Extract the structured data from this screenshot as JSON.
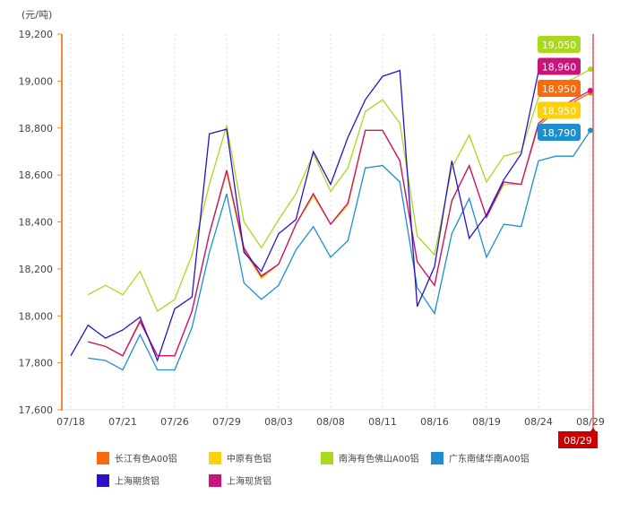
{
  "chart_data": {
    "type": "line",
    "unit_label": "(元/吨)",
    "ylim": [
      17600,
      19200
    ],
    "y_ticks": [
      "17,600",
      "17,800",
      "18,000",
      "18,200",
      "18,400",
      "18,600",
      "18,800",
      "19,000",
      "19,200"
    ],
    "y_tick_values": [
      17600,
      17800,
      18000,
      18200,
      18400,
      18600,
      18800,
      19000,
      19200
    ],
    "x_tick_labels": [
      "07/18",
      "07/21",
      "07/26",
      "07/29",
      "08/03",
      "08/08",
      "08/11",
      "08/16",
      "08/19",
      "08/24",
      "08/29"
    ],
    "x_count": 31,
    "grid": "vertical dotted",
    "legend_position": "bottom",
    "crosshair_label": "08/29",
    "series": [
      {
        "name": "长江有色A00铝",
        "color": "#f76b0f",
        "values": [
          null,
          17890,
          17870,
          17830,
          17980,
          17830,
          17830,
          18020,
          18350,
          18620,
          18280,
          18165,
          18220,
          18390,
          18520,
          18390,
          18480,
          18790,
          18790,
          18660,
          18230,
          18130,
          18490,
          18640,
          18420,
          18570,
          18560,
          18810,
          18870,
          18910,
          18950
        ]
      },
      {
        "name": "中原有色铝",
        "color": "#fcd10a",
        "values": [
          null,
          17890,
          17870,
          17830,
          17980,
          17830,
          17830,
          18020,
          18350,
          18610,
          18280,
          18160,
          18220,
          18390,
          18510,
          18390,
          18470,
          18790,
          18790,
          18660,
          18230,
          18130,
          18490,
          18640,
          18420,
          18560,
          18560,
          18810,
          18870,
          18910,
          18950
        ]
      },
      {
        "name": "南海有色佛山A00铝",
        "color": "#a9d81c",
        "values": [
          null,
          18090,
          18130,
          18090,
          18190,
          18020,
          18070,
          18260,
          18560,
          18810,
          18400,
          18290,
          18410,
          18520,
          18690,
          18530,
          18630,
          18870,
          18920,
          18820,
          18340,
          18260,
          18630,
          18770,
          18570,
          18680,
          18700,
          18930,
          18980,
          19010,
          19050
        ]
      },
      {
        "name": "广东南储华南A00铝",
        "color": "#1d8ed0",
        "values": [
          null,
          17820,
          17810,
          17770,
          17920,
          17770,
          17770,
          17950,
          18270,
          18520,
          18140,
          18070,
          18130,
          18280,
          18380,
          18250,
          18320,
          18630,
          18640,
          18570,
          18120,
          18010,
          18350,
          18500,
          18250,
          18390,
          18380,
          18660,
          18680,
          18680,
          18790
        ]
      },
      {
        "name": "上海期货铝",
        "color": "#2a10c8",
        "values": [
          17830,
          17960,
          17905,
          17940,
          17995,
          17810,
          18030,
          18080,
          18775,
          18795,
          18270,
          18190,
          18350,
          18410,
          18700,
          18560,
          18760,
          18920,
          19020,
          19045,
          18040,
          18210,
          18660,
          18330,
          18430,
          18580,
          18690,
          19040,
          null,
          null,
          null
        ]
      },
      {
        "name": "上海现货铝",
        "color": "#c8157c",
        "values": [
          null,
          17890,
          17870,
          17830,
          17975,
          17830,
          17830,
          18020,
          18350,
          18620,
          18290,
          18170,
          18220,
          18390,
          18520,
          18390,
          18480,
          18790,
          18790,
          18660,
          18230,
          18130,
          18490,
          18640,
          18420,
          18570,
          18560,
          18820,
          18880,
          18920,
          18960
        ]
      }
    ],
    "callouts": [
      {
        "text": "19,050",
        "color": "#a9d81c"
      },
      {
        "text": "18,960",
        "color": "#c8157c"
      },
      {
        "text": "18,950",
        "color": "#f76b0f"
      },
      {
        "text": "18,950",
        "color": "#fcd10a"
      },
      {
        "text": "18,790",
        "color": "#1d8ed0"
      }
    ]
  }
}
